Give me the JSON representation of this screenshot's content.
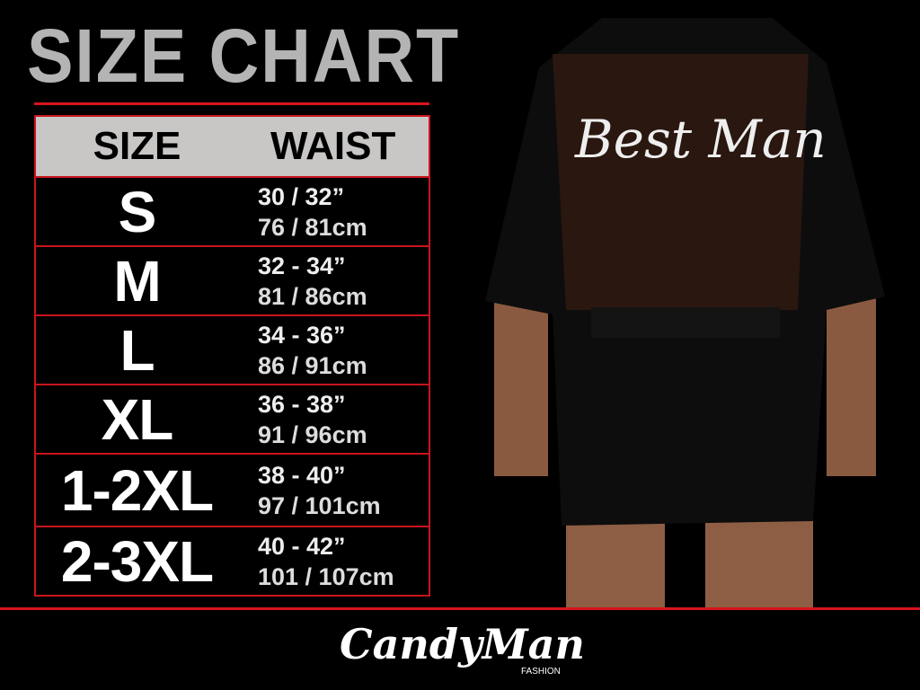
{
  "title": "SIZE CHART",
  "table": {
    "headers": [
      "SIZE",
      "WAIST"
    ],
    "rows": [
      {
        "size": "S",
        "inches": "30 / 32”",
        "cm": "76 / 81cm"
      },
      {
        "size": "M",
        "inches": "32 - 34”",
        "cm": "81 / 86cm"
      },
      {
        "size": "L",
        "inches": "34 - 36”",
        "cm": "86 / 91cm"
      },
      {
        "size": "XL",
        "inches": "36 - 38”",
        "cm": "91 / 96cm"
      },
      {
        "size": "1-2XL",
        "inches": "38 - 40”",
        "cm": "97 / 101cm"
      },
      {
        "size": "2-3XL",
        "inches": "40 - 42”",
        "cm": "101 / 107cm"
      }
    ]
  },
  "photo": {
    "garment_text": "Best Man"
  },
  "brand": {
    "logo": "CandyMan",
    "sub": "FASHION"
  },
  "colors": {
    "accent": "#d8141c",
    "header_bg": "#c9c6c6",
    "title": "#b4b4b4"
  }
}
